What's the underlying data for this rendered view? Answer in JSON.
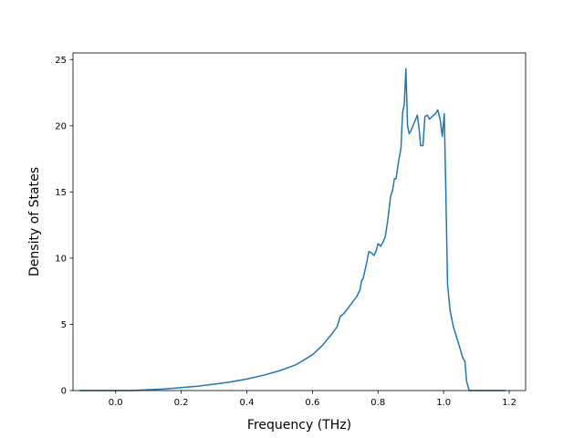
{
  "chart_data": {
    "type": "line",
    "title": "",
    "xlabel": "Frequency (THz)",
    "ylabel": "Density of States",
    "xlim": [
      -0.13,
      1.25
    ],
    "ylim": [
      0,
      25.5
    ],
    "x_ticks": [
      0.0,
      0.2,
      0.4,
      0.6,
      0.8,
      1.0,
      1.2
    ],
    "x_tick_labels": [
      "0.0",
      "0.2",
      "0.4",
      "0.6",
      "0.8",
      "1.0",
      "1.2"
    ],
    "y_ticks": [
      0,
      5,
      10,
      15,
      20,
      25
    ],
    "y_tick_labels": [
      "0",
      "5",
      "10",
      "15",
      "20",
      "25"
    ],
    "grid": false,
    "line_color": "#1f77b4",
    "series": [
      {
        "points": [
          [
            -0.11,
            0.0
          ],
          [
            0.0,
            0.0
          ],
          [
            0.05,
            0.0
          ],
          [
            0.1,
            0.06
          ],
          [
            0.15,
            0.12
          ],
          [
            0.2,
            0.22
          ],
          [
            0.25,
            0.33
          ],
          [
            0.3,
            0.48
          ],
          [
            0.35,
            0.65
          ],
          [
            0.4,
            0.87
          ],
          [
            0.45,
            1.15
          ],
          [
            0.5,
            1.5
          ],
          [
            0.55,
            1.95
          ],
          [
            0.6,
            2.7
          ],
          [
            0.63,
            3.4
          ],
          [
            0.66,
            4.3
          ],
          [
            0.675,
            4.8
          ],
          [
            0.685,
            5.6
          ],
          [
            0.695,
            5.8
          ],
          [
            0.705,
            6.1
          ],
          [
            0.72,
            6.6
          ],
          [
            0.735,
            7.1
          ],
          [
            0.745,
            7.6
          ],
          [
            0.75,
            8.3
          ],
          [
            0.755,
            8.5
          ],
          [
            0.765,
            9.6
          ],
          [
            0.772,
            10.5
          ],
          [
            0.78,
            10.4
          ],
          [
            0.788,
            10.2
          ],
          [
            0.795,
            10.6
          ],
          [
            0.8,
            11.1
          ],
          [
            0.808,
            10.9
          ],
          [
            0.815,
            11.2
          ],
          [
            0.822,
            11.6
          ],
          [
            0.83,
            12.9
          ],
          [
            0.838,
            14.6
          ],
          [
            0.845,
            15.2
          ],
          [
            0.85,
            16.0
          ],
          [
            0.855,
            16.0
          ],
          [
            0.862,
            17.2
          ],
          [
            0.87,
            18.3
          ],
          [
            0.875,
            21.0
          ],
          [
            0.88,
            21.6
          ],
          [
            0.885,
            24.3
          ],
          [
            0.89,
            20.0
          ],
          [
            0.895,
            19.4
          ],
          [
            0.9,
            19.6
          ],
          [
            0.91,
            20.2
          ],
          [
            0.92,
            20.8
          ],
          [
            0.925,
            19.8
          ],
          [
            0.93,
            18.5
          ],
          [
            0.937,
            18.5
          ],
          [
            0.943,
            20.7
          ],
          [
            0.95,
            20.8
          ],
          [
            0.957,
            20.5
          ],
          [
            0.965,
            20.7
          ],
          [
            0.975,
            20.9
          ],
          [
            0.982,
            21.2
          ],
          [
            0.99,
            20.4
          ],
          [
            0.996,
            19.2
          ],
          [
            1.002,
            20.9
          ],
          [
            1.006,
            16.0
          ],
          [
            1.012,
            8.0
          ],
          [
            1.02,
            6.0
          ],
          [
            1.03,
            4.8
          ],
          [
            1.045,
            3.6
          ],
          [
            1.058,
            2.5
          ],
          [
            1.065,
            2.2
          ],
          [
            1.07,
            0.7
          ],
          [
            1.078,
            0.0
          ],
          [
            1.12,
            0.0
          ],
          [
            1.19,
            0.0
          ]
        ]
      }
    ]
  }
}
